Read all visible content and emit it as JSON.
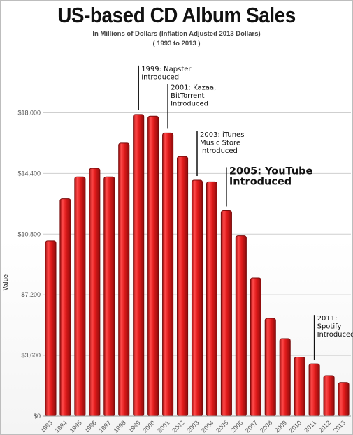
{
  "chart_data": {
    "type": "bar",
    "title": "US-based CD Album Sales",
    "subtitle": "In Millions of Dollars (Inflation Adjusted 2013 Dollars)",
    "subtitle2": "( 1993 to 2013 )",
    "ylabel": "Value",
    "xlabel": "",
    "categories": [
      "1993",
      "1994",
      "1995",
      "1996",
      "1997",
      "1998",
      "1999",
      "2000",
      "2001",
      "2002",
      "2003",
      "2004",
      "2005",
      "2006",
      "2007",
      "2008",
      "2009",
      "2010",
      "2011",
      "2012",
      "2013"
    ],
    "values": [
      10400,
      12900,
      14200,
      14700,
      14200,
      16200,
      17900,
      17800,
      16800,
      15400,
      14000,
      13900,
      12200,
      10700,
      8200,
      5800,
      4600,
      3500,
      3100,
      2400,
      2000
    ],
    "ylim": [
      0,
      19800
    ],
    "yticks": [
      0,
      3600,
      7200,
      10800,
      14400,
      18000
    ],
    "ytick_labels": [
      "$0",
      "$3,600",
      "$7,200",
      "$10,800",
      "$14,400",
      "$18,000"
    ],
    "grid": true,
    "bar_color": "#e01a1a",
    "bar_edge_color": "#7a0d0d",
    "annotations": [
      {
        "year": "1999",
        "lines": [
          "1999: Napster",
          "Introduced"
        ],
        "size": "small"
      },
      {
        "year": "2001",
        "lines": [
          "2001: Kazaa,",
          "BitTorrent",
          "Introduced"
        ],
        "size": "small"
      },
      {
        "year": "2003",
        "lines": [
          "2003: iTunes",
          "Music Store",
          "Introduced"
        ],
        "size": "small"
      },
      {
        "year": "2005",
        "lines": [
          "2005: YouTube",
          "Introduced"
        ],
        "size": "big"
      },
      {
        "year": "2011",
        "lines": [
          "2011:",
          "Spotify",
          "Introduced"
        ],
        "size": "small"
      }
    ]
  }
}
